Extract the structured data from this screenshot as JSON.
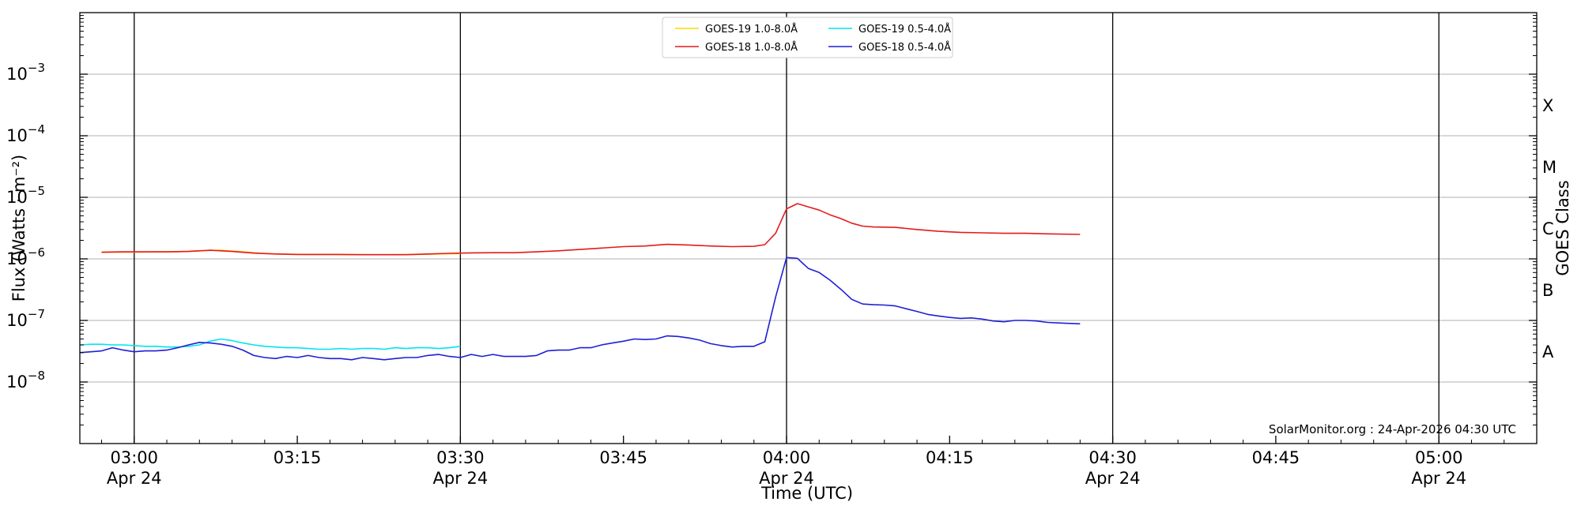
{
  "chart_data": {
    "type": "line",
    "title": "",
    "xlabel": "Time (UTC)",
    "ylabel": "Flux (Watts · m⁻²)",
    "y2label": "GOES Class",
    "yscale": "log",
    "xlim": [
      "02:55",
      "05:09"
    ],
    "ylim": [
      1e-09,
      0.01
    ],
    "grid": "horizontal",
    "legend_position": "top-center",
    "credit": "SolarMonitor.org : 24-Apr-2026 04:30 UTC",
    "x_ticks": [
      {
        "time": "03:00",
        "label": "03:00",
        "date": "Apr 24"
      },
      {
        "time": "03:15",
        "label": "03:15",
        "date": ""
      },
      {
        "time": "03:30",
        "label": "03:30",
        "date": "Apr 24"
      },
      {
        "time": "03:45",
        "label": "03:45",
        "date": ""
      },
      {
        "time": "04:00",
        "label": "04:00",
        "date": "Apr 24"
      },
      {
        "time": "04:15",
        "label": "04:15",
        "date": ""
      },
      {
        "time": "04:30",
        "label": "04:30",
        "date": "Apr 24"
      },
      {
        "time": "04:45",
        "label": "04:45",
        "date": ""
      },
      {
        "time": "05:00",
        "label": "05:00",
        "date": "Apr 24"
      }
    ],
    "y_ticks": [
      {
        "value": 1e-08,
        "base": "10",
        "exp": "−8"
      },
      {
        "value": 1e-07,
        "base": "10",
        "exp": "−7"
      },
      {
        "value": 1e-06,
        "base": "10",
        "exp": "−6"
      },
      {
        "value": 1e-05,
        "base": "10",
        "exp": "−5"
      },
      {
        "value": 0.0001,
        "base": "10",
        "exp": "−4"
      },
      {
        "value": 0.001,
        "base": "10",
        "exp": "−3"
      }
    ],
    "vertical_lines": [
      "03:00",
      "03:30",
      "04:00",
      "04:30",
      "05:00"
    ],
    "goes_classes": [
      {
        "label": "A",
        "value": 3.16e-08
      },
      {
        "label": "B",
        "value": 3.16e-07
      },
      {
        "label": "C",
        "value": 3.16e-06
      },
      {
        "label": "M",
        "value": 3.16e-05
      },
      {
        "label": "X",
        "value": 0.000316
      }
    ],
    "series": [
      {
        "name": "GOES-19 1.0-8.0Å",
        "color": "#ffd700",
        "x": [
          "02:57",
          "03:00",
          "03:02",
          "03:04",
          "03:06",
          "03:08",
          "03:10",
          "03:12",
          "03:14",
          "03:16",
          "03:18",
          "03:20",
          "03:22",
          "03:24",
          "03:26",
          "03:28",
          "03:30"
        ],
        "y": [
          1.28e-06,
          1.29e-06,
          1.3e-06,
          1.3e-06,
          1.36e-06,
          1.38e-06,
          1.3e-06,
          1.22e-06,
          1.19e-06,
          1.18e-06,
          1.18e-06,
          1.17e-06,
          1.17e-06,
          1.17e-06,
          1.18e-06,
          1.2e-06,
          1.22e-06
        ]
      },
      {
        "name": "GOES-18 1.0-8.0Å",
        "color": "#e41a1c",
        "x": [
          "02:57",
          "02:59",
          "03:01",
          "03:03",
          "03:05",
          "03:07",
          "03:09",
          "03:11",
          "03:13",
          "03:15",
          "03:17",
          "03:19",
          "03:21",
          "03:23",
          "03:25",
          "03:27",
          "03:29",
          "03:31",
          "03:33",
          "03:35",
          "03:37",
          "03:39",
          "03:41",
          "03:43",
          "03:45",
          "03:47",
          "03:49",
          "03:51",
          "03:53",
          "03:55",
          "03:57",
          "03:58",
          "03:59",
          "04:00",
          "04:01",
          "04:02",
          "04:03",
          "04:04",
          "04:05",
          "04:06",
          "04:07",
          "04:08",
          "04:10",
          "04:12",
          "04:14",
          "04:16",
          "04:18",
          "04:20",
          "04:22",
          "04:24",
          "04:27"
        ],
        "y": [
          1.28e-06,
          1.3e-06,
          1.3e-06,
          1.3e-06,
          1.32e-06,
          1.38e-06,
          1.32e-06,
          1.24e-06,
          1.2e-06,
          1.18e-06,
          1.18e-06,
          1.18e-06,
          1.17e-06,
          1.17e-06,
          1.17e-06,
          1.2e-06,
          1.23e-06,
          1.25e-06,
          1.26e-06,
          1.26e-06,
          1.3e-06,
          1.35e-06,
          1.42e-06,
          1.5e-06,
          1.58e-06,
          1.62e-06,
          1.72e-06,
          1.68e-06,
          1.62e-06,
          1.58e-06,
          1.6e-06,
          1.7e-06,
          2.6e-06,
          6.5e-06,
          7.9e-06,
          7e-06,
          6.2e-06,
          5.2e-06,
          4.5e-06,
          3.8e-06,
          3.4e-06,
          3.3e-06,
          3.25e-06,
          3e-06,
          2.8e-06,
          2.7e-06,
          2.65e-06,
          2.6e-06,
          2.6e-06,
          2.55e-06,
          2.5e-06
        ]
      },
      {
        "name": "GOES-19 0.5-4.0Å",
        "color": "#00e5ee",
        "x": [
          "02:55",
          "02:56",
          "02:57",
          "02:58",
          "02:59",
          "03:00",
          "03:01",
          "03:02",
          "03:03",
          "03:04",
          "03:05",
          "03:06",
          "03:07",
          "03:08",
          "03:09",
          "03:10",
          "03:11",
          "03:12",
          "03:13",
          "03:14",
          "03:15",
          "03:16",
          "03:17",
          "03:18",
          "03:19",
          "03:20",
          "03:21",
          "03:22",
          "03:23",
          "03:24",
          "03:25",
          "03:26",
          "03:27",
          "03:28",
          "03:29",
          "03:30"
        ],
        "y": [
          4e-08,
          4.1e-08,
          4.1e-08,
          4e-08,
          4e-08,
          3.9e-08,
          3.8e-08,
          3.8e-08,
          3.7e-08,
          3.7e-08,
          3.8e-08,
          4e-08,
          4.6e-08,
          5e-08,
          4.7e-08,
          4.3e-08,
          4e-08,
          3.8e-08,
          3.7e-08,
          3.6e-08,
          3.6e-08,
          3.5e-08,
          3.4e-08,
          3.4e-08,
          3.5e-08,
          3.4e-08,
          3.5e-08,
          3.5e-08,
          3.4e-08,
          3.6e-08,
          3.5e-08,
          3.6e-08,
          3.6e-08,
          3.5e-08,
          3.6e-08,
          3.8e-08
        ]
      },
      {
        "name": "GOES-18 0.5-4.0Å",
        "color": "#1f1fd6",
        "x": [
          "02:55",
          "02:57",
          "02:58",
          "02:59",
          "03:00",
          "03:01",
          "03:02",
          "03:03",
          "03:04",
          "03:05",
          "03:06",
          "03:07",
          "03:08",
          "03:09",
          "03:10",
          "03:11",
          "03:12",
          "03:13",
          "03:14",
          "03:15",
          "03:16",
          "03:17",
          "03:18",
          "03:19",
          "03:20",
          "03:21",
          "03:22",
          "03:23",
          "03:24",
          "03:25",
          "03:26",
          "03:27",
          "03:28",
          "03:29",
          "03:30",
          "03:31",
          "03:32",
          "03:33",
          "03:34",
          "03:35",
          "03:36",
          "03:37",
          "03:38",
          "03:39",
          "03:40",
          "03:41",
          "03:42",
          "03:43",
          "03:44",
          "03:45",
          "03:46",
          "03:47",
          "03:48",
          "03:49",
          "03:50",
          "03:51",
          "03:52",
          "03:53",
          "03:54",
          "03:55",
          "03:56",
          "03:57",
          "03:58",
          "03:59",
          "04:00",
          "04:01",
          "04:02",
          "04:03",
          "04:04",
          "04:05",
          "04:06",
          "04:07",
          "04:08",
          "04:09",
          "04:10",
          "04:11",
          "04:12",
          "04:13",
          "04:14",
          "04:15",
          "04:16",
          "04:17",
          "04:18",
          "04:19",
          "04:20",
          "04:21",
          "04:22",
          "04:23",
          "04:24",
          "04:25",
          "04:27"
        ],
        "y": [
          3e-08,
          3.2e-08,
          3.6e-08,
          3.3e-08,
          3.1e-08,
          3.2e-08,
          3.2e-08,
          3.3e-08,
          3.6e-08,
          4e-08,
          4.4e-08,
          4.3e-08,
          4.1e-08,
          3.8e-08,
          3.3e-08,
          2.7e-08,
          2.5e-08,
          2.4e-08,
          2.6e-08,
          2.5e-08,
          2.7e-08,
          2.5e-08,
          2.4e-08,
          2.4e-08,
          2.3e-08,
          2.5e-08,
          2.4e-08,
          2.3e-08,
          2.4e-08,
          2.5e-08,
          2.5e-08,
          2.7e-08,
          2.8e-08,
          2.6e-08,
          2.5e-08,
          2.8e-08,
          2.6e-08,
          2.8e-08,
          2.6e-08,
          2.6e-08,
          2.6e-08,
          2.7e-08,
          3.2e-08,
          3.3e-08,
          3.3e-08,
          3.6e-08,
          3.6e-08,
          4e-08,
          4.3e-08,
          4.6e-08,
          5e-08,
          4.9e-08,
          5e-08,
          5.6e-08,
          5.5e-08,
          5.2e-08,
          4.8e-08,
          4.2e-08,
          3.9e-08,
          3.7e-08,
          3.8e-08,
          3.8e-08,
          4.5e-08,
          2.4e-07,
          1.05e-06,
          1.02e-06,
          7e-07,
          6e-07,
          4.5e-07,
          3.2e-07,
          2.2e-07,
          1.85e-07,
          1.8e-07,
          1.78e-07,
          1.72e-07,
          1.55e-07,
          1.4e-07,
          1.25e-07,
          1.18e-07,
          1.12e-07,
          1.08e-07,
          1.1e-07,
          1.05e-07,
          9.8e-08,
          9.5e-08,
          1e-07,
          1e-07,
          9.8e-08,
          9.3e-08,
          9.1e-08,
          8.8e-08
        ]
      }
    ]
  }
}
